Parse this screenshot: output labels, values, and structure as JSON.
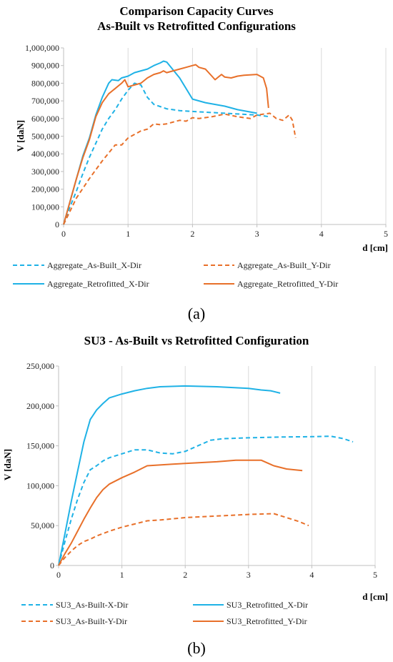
{
  "colors": {
    "blue": "#1fb2e6",
    "orange": "#e8702a"
  },
  "chart_data": [
    {
      "type": "line",
      "panel_label": "(a)",
      "title_lines": [
        "Comparison Capacity Curves",
        "As-Built vs Retrofitted Configurations"
      ],
      "xlabel": "d [cm]",
      "ylabel": "V [daN]",
      "xlim": [
        0,
        5
      ],
      "ylim": [
        0,
        1000000
      ],
      "xticks": [
        0,
        1,
        2,
        3,
        4,
        5
      ],
      "xtick_labels": [
        "0",
        "1",
        "2",
        "3",
        "4",
        "5"
      ],
      "yticks": [
        0,
        100000,
        200000,
        300000,
        400000,
        500000,
        600000,
        700000,
        800000,
        900000,
        1000000
      ],
      "ytick_labels": [
        "0",
        "100,000",
        "200,000",
        "300,000",
        "400,000",
        "500,000",
        "600,000",
        "700,000",
        "800,000",
        "900,000",
        "1,000,000"
      ],
      "grid": "vertical",
      "legend_position": "bottom",
      "series": [
        {
          "name": "Aggregate_As-Built_X-Dir",
          "color": "blue",
          "dash": "dashed",
          "points": [
            [
              0,
              0
            ],
            [
              0.1,
              100000
            ],
            [
              0.2,
              190000
            ],
            [
              0.3,
              290000
            ],
            [
              0.4,
              380000
            ],
            [
              0.5,
              460000
            ],
            [
              0.6,
              540000
            ],
            [
              0.7,
              600000
            ],
            [
              0.8,
              650000
            ],
            [
              0.9,
              710000
            ],
            [
              1.0,
              760000
            ],
            [
              1.1,
              800000
            ],
            [
              1.2,
              790000
            ],
            [
              1.3,
              720000
            ],
            [
              1.4,
              680000
            ],
            [
              1.6,
              655000
            ],
            [
              1.8,
              645000
            ],
            [
              2.0,
              640000
            ],
            [
              2.5,
              630000
            ],
            [
              3.0,
              620000
            ],
            [
              3.2,
              610000
            ]
          ]
        },
        {
          "name": "Aggregate_As-Built_Y-Dir",
          "color": "orange",
          "dash": "dashed",
          "points": [
            [
              0,
              0
            ],
            [
              0.2,
              150000
            ],
            [
              0.4,
              260000
            ],
            [
              0.6,
              360000
            ],
            [
              0.8,
              450000
            ],
            [
              0.9,
              450000
            ],
            [
              1.0,
              490000
            ],
            [
              1.2,
              530000
            ],
            [
              1.3,
              540000
            ],
            [
              1.4,
              570000
            ],
            [
              1.5,
              565000
            ],
            [
              1.6,
              570000
            ],
            [
              1.8,
              590000
            ],
            [
              1.9,
              585000
            ],
            [
              2.0,
              605000
            ],
            [
              2.1,
              600000
            ],
            [
              2.3,
              610000
            ],
            [
              2.5,
              625000
            ],
            [
              2.7,
              610000
            ],
            [
              2.9,
              600000
            ],
            [
              3.0,
              620000
            ],
            [
              3.2,
              630000
            ],
            [
              3.3,
              600000
            ],
            [
              3.4,
              590000
            ],
            [
              3.5,
              620000
            ],
            [
              3.55,
              590000
            ],
            [
              3.6,
              490000
            ]
          ]
        },
        {
          "name": "Aggregate_Retrofitted_X-Dir",
          "color": "blue",
          "dash": "solid",
          "points": [
            [
              0,
              0
            ],
            [
              0.1,
              130000
            ],
            [
              0.2,
              260000
            ],
            [
              0.3,
              390000
            ],
            [
              0.4,
              490000
            ],
            [
              0.5,
              620000
            ],
            [
              0.6,
              720000
            ],
            [
              0.7,
              800000
            ],
            [
              0.75,
              820000
            ],
            [
              0.85,
              815000
            ],
            [
              0.9,
              830000
            ],
            [
              1.0,
              840000
            ],
            [
              1.1,
              860000
            ],
            [
              1.2,
              870000
            ],
            [
              1.3,
              880000
            ],
            [
              1.4,
              900000
            ],
            [
              1.5,
              915000
            ],
            [
              1.55,
              925000
            ],
            [
              1.6,
              920000
            ],
            [
              1.8,
              830000
            ],
            [
              2.0,
              710000
            ],
            [
              2.2,
              690000
            ],
            [
              2.5,
              670000
            ],
            [
              2.7,
              650000
            ],
            [
              3.0,
              630000
            ]
          ]
        },
        {
          "name": "Aggregate_Retrofitted_Y-Dir",
          "color": "orange",
          "dash": "solid",
          "points": [
            [
              0,
              0
            ],
            [
              0.1,
              130000
            ],
            [
              0.2,
              260000
            ],
            [
              0.3,
              380000
            ],
            [
              0.4,
              480000
            ],
            [
              0.5,
              610000
            ],
            [
              0.6,
              690000
            ],
            [
              0.7,
              740000
            ],
            [
              0.8,
              770000
            ],
            [
              0.9,
              800000
            ],
            [
              0.95,
              820000
            ],
            [
              1.0,
              780000
            ],
            [
              1.1,
              790000
            ],
            [
              1.2,
              800000
            ],
            [
              1.3,
              830000
            ],
            [
              1.4,
              850000
            ],
            [
              1.5,
              860000
            ],
            [
              1.55,
              870000
            ],
            [
              1.6,
              860000
            ],
            [
              1.7,
              870000
            ],
            [
              1.8,
              880000
            ],
            [
              1.9,
              890000
            ],
            [
              2.0,
              900000
            ],
            [
              2.05,
              905000
            ],
            [
              2.1,
              890000
            ],
            [
              2.2,
              880000
            ],
            [
              2.3,
              840000
            ],
            [
              2.35,
              820000
            ],
            [
              2.45,
              850000
            ],
            [
              2.5,
              835000
            ],
            [
              2.6,
              830000
            ],
            [
              2.7,
              840000
            ],
            [
              2.8,
              845000
            ],
            [
              3.0,
              850000
            ],
            [
              3.1,
              830000
            ],
            [
              3.15,
              770000
            ],
            [
              3.18,
              660000
            ]
          ]
        }
      ]
    },
    {
      "type": "line",
      "panel_label": "(b)",
      "title_lines": [
        "SU3 - As-Built vs Retrofitted Configuration"
      ],
      "xlabel": "d [cm]",
      "ylabel": "V [daN]",
      "xlim": [
        0,
        5
      ],
      "ylim": [
        0,
        250000
      ],
      "xticks": [
        0,
        1,
        2,
        3,
        4,
        5
      ],
      "xtick_labels": [
        "0",
        "1",
        "2",
        "3",
        "4",
        "5"
      ],
      "yticks": [
        0,
        50000,
        100000,
        150000,
        200000,
        250000
      ],
      "ytick_labels": [
        "0",
        "50,000",
        "100,000",
        "150,000",
        "200,000",
        "250,000"
      ],
      "grid": "vertical",
      "legend_position": "bottom",
      "series": [
        {
          "name": "SU3_As-Built-X-Dir",
          "color": "blue",
          "dash": "dashed",
          "points": [
            [
              0,
              0
            ],
            [
              0.1,
              30000
            ],
            [
              0.2,
              58000
            ],
            [
              0.3,
              83000
            ],
            [
              0.4,
              104000
            ],
            [
              0.5,
              120000
            ],
            [
              0.6,
              125000
            ],
            [
              0.7,
              131000
            ],
            [
              0.8,
              135000
            ],
            [
              1.0,
              140000
            ],
            [
              1.2,
              145000
            ],
            [
              1.4,
              145000
            ],
            [
              1.6,
              141000
            ],
            [
              1.8,
              140000
            ],
            [
              2.0,
              143000
            ],
            [
              2.2,
              150000
            ],
            [
              2.4,
              157000
            ],
            [
              2.6,
              159000
            ],
            [
              3.0,
              160000
            ],
            [
              3.5,
              161000
            ],
            [
              4.0,
              161500
            ],
            [
              4.3,
              162000
            ],
            [
              4.5,
              159000
            ],
            [
              4.65,
              155000
            ]
          ]
        },
        {
          "name": "SU3_Retrofitted_X-Dir",
          "color": "blue",
          "dash": "solid",
          "points": [
            [
              0,
              0
            ],
            [
              0.1,
              40000
            ],
            [
              0.2,
              80000
            ],
            [
              0.3,
              118000
            ],
            [
              0.4,
              155000
            ],
            [
              0.5,
              183000
            ],
            [
              0.6,
              195000
            ],
            [
              0.7,
              203000
            ],
            [
              0.8,
              210000
            ],
            [
              1.0,
              215000
            ],
            [
              1.2,
              219000
            ],
            [
              1.4,
              222000
            ],
            [
              1.6,
              224000
            ],
            [
              2.0,
              225000
            ],
            [
              2.5,
              224000
            ],
            [
              3.0,
              222000
            ],
            [
              3.2,
              220000
            ],
            [
              3.35,
              219000
            ],
            [
              3.5,
              216000
            ]
          ]
        },
        {
          "name": "SU3_As-Built-Y-Dir",
          "color": "orange",
          "dash": "dashed",
          "points": [
            [
              0,
              0
            ],
            [
              0.1,
              10000
            ],
            [
              0.2,
              18000
            ],
            [
              0.3,
              25000
            ],
            [
              0.4,
              30000
            ],
            [
              0.5,
              33000
            ],
            [
              0.6,
              37000
            ],
            [
              0.7,
              40000
            ],
            [
              0.8,
              43000
            ],
            [
              1.0,
              48000
            ],
            [
              1.2,
              52000
            ],
            [
              1.4,
              56000
            ],
            [
              1.6,
              57000
            ],
            [
              2.0,
              60000
            ],
            [
              2.5,
              62000
            ],
            [
              3.0,
              64000
            ],
            [
              3.4,
              65000
            ],
            [
              3.6,
              60000
            ],
            [
              3.8,
              55000
            ],
            [
              3.95,
              50000
            ]
          ]
        },
        {
          "name": "SU3_Retrofitted_Y-Dir",
          "color": "orange",
          "dash": "solid",
          "points": [
            [
              0,
              0
            ],
            [
              0.1,
              15000
            ],
            [
              0.2,
              28000
            ],
            [
              0.3,
              43000
            ],
            [
              0.4,
              58000
            ],
            [
              0.5,
              72000
            ],
            [
              0.6,
              85000
            ],
            [
              0.7,
              95000
            ],
            [
              0.8,
              102000
            ],
            [
              1.0,
              110000
            ],
            [
              1.2,
              117000
            ],
            [
              1.4,
              125000
            ],
            [
              1.6,
              126000
            ],
            [
              1.8,
              127000
            ],
            [
              2.0,
              128000
            ],
            [
              2.5,
              130000
            ],
            [
              2.8,
              132000
            ],
            [
              3.2,
              132000
            ],
            [
              3.4,
              125000
            ],
            [
              3.6,
              121000
            ],
            [
              3.85,
              119000
            ]
          ]
        }
      ]
    }
  ]
}
